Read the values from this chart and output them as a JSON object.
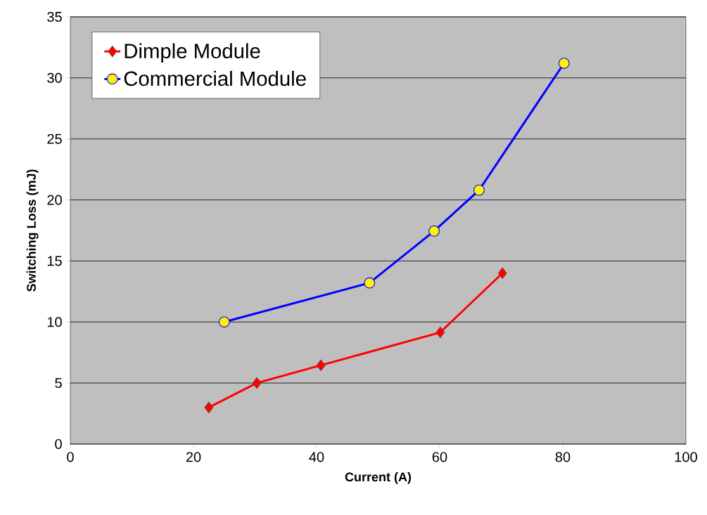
{
  "chart_data": {
    "type": "line",
    "xlabel": "Current (A)",
    "ylabel": "Switching Loss (mJ)",
    "xlim": [
      0,
      100
    ],
    "xticks": [
      0,
      20,
      40,
      60,
      80,
      100
    ],
    "ylim": [
      0,
      35
    ],
    "yticks": [
      0,
      5,
      10,
      15,
      20,
      25,
      30,
      35
    ],
    "grid": "y",
    "legend": "top left",
    "line_style": "solid",
    "series": [
      {
        "name": "Dimple Module",
        "color": "#ff0000",
        "marker": "diamond",
        "x": [
          22.5,
          30.3,
          40.7,
          60.1,
          70.2
        ],
        "values": [
          3.0,
          5.0,
          6.45,
          9.15,
          14.0
        ]
      },
      {
        "name": "Commercial Module",
        "color": "#0000ff",
        "marker": "circle",
        "x": [
          25,
          48.6,
          59.1,
          66.4,
          80.2
        ],
        "values": [
          10.0,
          13.2,
          17.45,
          20.8,
          31.2
        ]
      }
    ]
  }
}
